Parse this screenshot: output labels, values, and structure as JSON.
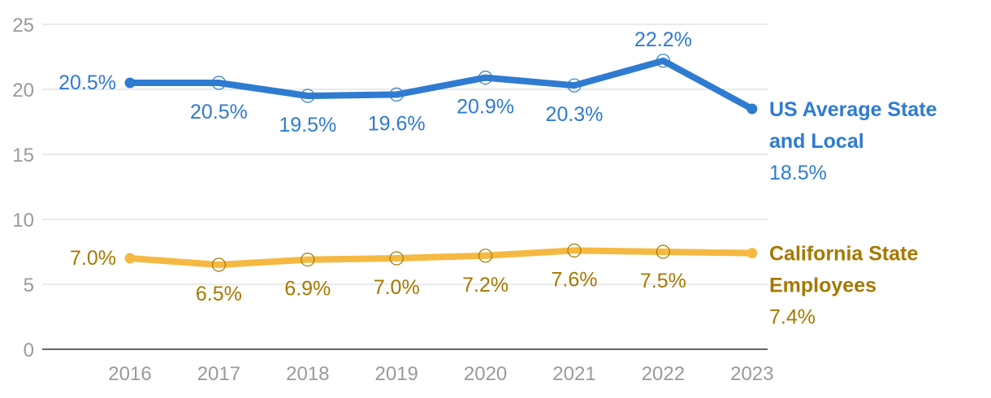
{
  "chart_data": {
    "type": "line",
    "title": "",
    "xlabel": "",
    "ylabel": "",
    "ylim": [
      0,
      25
    ],
    "yticks": [
      0,
      5,
      10,
      15,
      20,
      25
    ],
    "grid": true,
    "categories": [
      "2016",
      "2017",
      "2018",
      "2019",
      "2020",
      "2021",
      "2022",
      "2023"
    ],
    "series": [
      {
        "name_lines": [
          "US Average State",
          "and Local"
        ],
        "color": "#2e7bd1",
        "values": [
          20.5,
          20.5,
          19.5,
          19.6,
          20.9,
          20.3,
          22.2,
          18.5
        ],
        "labels": [
          "20.5%",
          "20.5%",
          "19.5%",
          "19.6%",
          "20.9%",
          "20.3%",
          "22.2%",
          "18.5%"
        ],
        "label_positions": [
          "left",
          "below",
          "below",
          "below",
          "below",
          "below",
          "above",
          "legend"
        ]
      },
      {
        "name_lines": [
          "California State",
          "Employees"
        ],
        "color": "#f5b942",
        "text_color": "#a57800",
        "values": [
          7.0,
          6.5,
          6.9,
          7.0,
          7.2,
          7.6,
          7.5,
          7.4
        ],
        "labels": [
          "7.0%",
          "6.5%",
          "6.9%",
          "7.0%",
          "7.2%",
          "7.6%",
          "7.5%",
          "7.4%"
        ],
        "label_positions": [
          "left",
          "below",
          "below",
          "below",
          "below",
          "below",
          "below",
          "legend"
        ]
      }
    ]
  }
}
